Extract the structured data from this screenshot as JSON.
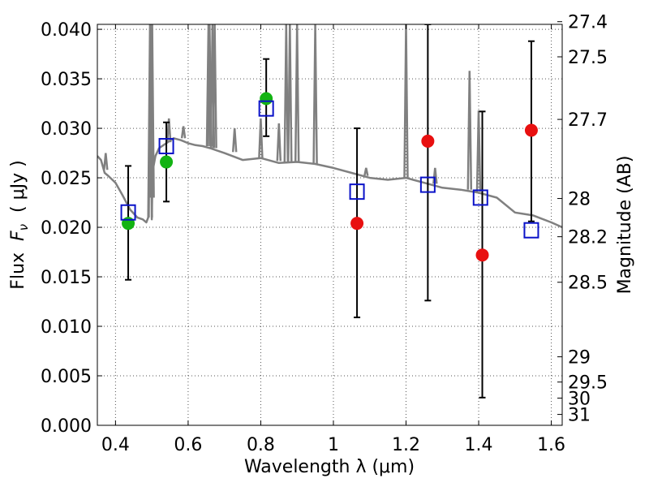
{
  "chart_data": {
    "type": "scatter",
    "xlabel": "Wavelength  λ (μm)",
    "ylabel_prefix": "Flux  ",
    "ylabel_symbol": "F",
    "ylabel_subscript": "ν",
    "ylabel_suffix": "  ( μJy )",
    "y2label": "Magnitude (AB)",
    "xlim": [
      0.35,
      1.63
    ],
    "ylim": [
      0.0,
      0.0405
    ],
    "x_ticks": [
      0.4,
      0.6,
      0.8,
      1.0,
      1.2,
      1.4,
      1.6
    ],
    "x_tick_labels": [
      "0.4",
      "0.6",
      "0.8",
      "1",
      "1.2",
      "1.4",
      "1.6"
    ],
    "y_ticks": [
      0.0,
      0.005,
      0.01,
      0.015,
      0.02,
      0.025,
      0.03,
      0.035,
      0.04
    ],
    "y_tick_labels": [
      "0.000",
      "0.005",
      "0.010",
      "0.015",
      "0.020",
      "0.025",
      "0.030",
      "0.035",
      "0.040"
    ],
    "y2_tick_flux": [
      0.04077,
      0.03722,
      0.0309,
      0.02291,
      0.01905,
      0.01445,
      0.00692,
      0.00437,
      0.00275,
      0.0011
    ],
    "y2_tick_labels": [
      "27.4",
      "27.5",
      "27.7",
      "28",
      "28.2",
      "28.5",
      "29",
      "29.5",
      "30",
      "31"
    ],
    "grid": true,
    "colors": {
      "model": "#808080",
      "green": "#13b313",
      "red": "#e81010",
      "blue": "#0a12c8",
      "errorbar": "#000000"
    },
    "series": [
      {
        "name": "model spectrum",
        "style": "line",
        "x": [
          0.35,
          0.36,
          0.37,
          0.38,
          0.4,
          0.42,
          0.44,
          0.46,
          0.475,
          0.485,
          0.49,
          0.495,
          0.496,
          0.5,
          0.502,
          0.504,
          0.51,
          0.52,
          0.54,
          0.56,
          0.58,
          0.6,
          0.62,
          0.64,
          0.66,
          0.7,
          0.75,
          0.8,
          0.85,
          0.9,
          0.95,
          1.0,
          1.05,
          1.1,
          1.15,
          1.2,
          1.25,
          1.3,
          1.35,
          1.4,
          1.45,
          1.5,
          1.55,
          1.6,
          1.63
        ],
        "y": [
          0.0272,
          0.0268,
          0.0255,
          0.0252,
          0.0245,
          0.0232,
          0.0218,
          0.021,
          0.0208,
          0.0205,
          0.021,
          0.0405,
          0.0405,
          0.0208,
          0.025,
          0.026,
          0.0272,
          0.028,
          0.0285,
          0.029,
          0.0288,
          0.0285,
          0.0283,
          0.0282,
          0.028,
          0.0275,
          0.0268,
          0.027,
          0.0265,
          0.0266,
          0.0264,
          0.026,
          0.0255,
          0.025,
          0.0248,
          0.025,
          0.0245,
          0.024,
          0.0238,
          0.0235,
          0.023,
          0.0215,
          0.0212,
          0.0205,
          0.02
        ]
      },
      {
        "name": "emission lines",
        "style": "spikes",
        "x": [
          0.373,
          0.496,
          0.501,
          0.547,
          0.587,
          0.656,
          0.659,
          0.667,
          0.673,
          0.728,
          0.8,
          0.85,
          0.87,
          0.88,
          0.9,
          0.95,
          1.09,
          1.2,
          1.28,
          1.375,
          1.4
        ],
        "base": [
          0.0258,
          0.021,
          0.023,
          0.0286,
          0.029,
          0.0282,
          0.0282,
          0.028,
          0.028,
          0.0276,
          0.027,
          0.0267,
          0.0266,
          0.0266,
          0.0266,
          0.0264,
          0.0252,
          0.025,
          0.0244,
          0.0238,
          0.0236
        ],
        "peak": [
          0.0275,
          0.0405,
          0.0405,
          0.031,
          0.0302,
          0.0405,
          0.0405,
          0.0405,
          0.0405,
          0.03,
          0.031,
          0.0305,
          0.0405,
          0.0405,
          0.0405,
          0.0405,
          0.026,
          0.0405,
          0.026,
          0.0358,
          0.0318
        ]
      },
      {
        "name": "green points",
        "style": "circle",
        "x": [
          0.435,
          0.54,
          0.815
        ],
        "y": [
          0.0204,
          0.0266,
          0.033
        ]
      },
      {
        "name": "red points",
        "style": "circle",
        "x": [
          1.065,
          1.26,
          1.41,
          1.545
        ],
        "y": [
          0.0204,
          0.0287,
          0.0172,
          0.0298
        ]
      },
      {
        "name": "blue squares",
        "style": "square",
        "x": [
          0.435,
          0.54,
          0.815,
          1.065,
          1.26,
          1.405,
          1.545
        ],
        "y": [
          0.0215,
          0.0282,
          0.032,
          0.0236,
          0.0243,
          0.023,
          0.0197
        ]
      },
      {
        "name": "error bars",
        "style": "errorbar",
        "x": [
          0.435,
          0.54,
          0.815,
          1.065,
          1.26,
          1.41,
          1.545
        ],
        "low": [
          0.0147,
          0.0226,
          0.0292,
          0.0109,
          0.0126,
          0.0028,
          0.0206
        ],
        "high": [
          0.0262,
          0.0306,
          0.037,
          0.03,
          0.0405,
          0.0317,
          0.0388
        ]
      }
    ]
  }
}
